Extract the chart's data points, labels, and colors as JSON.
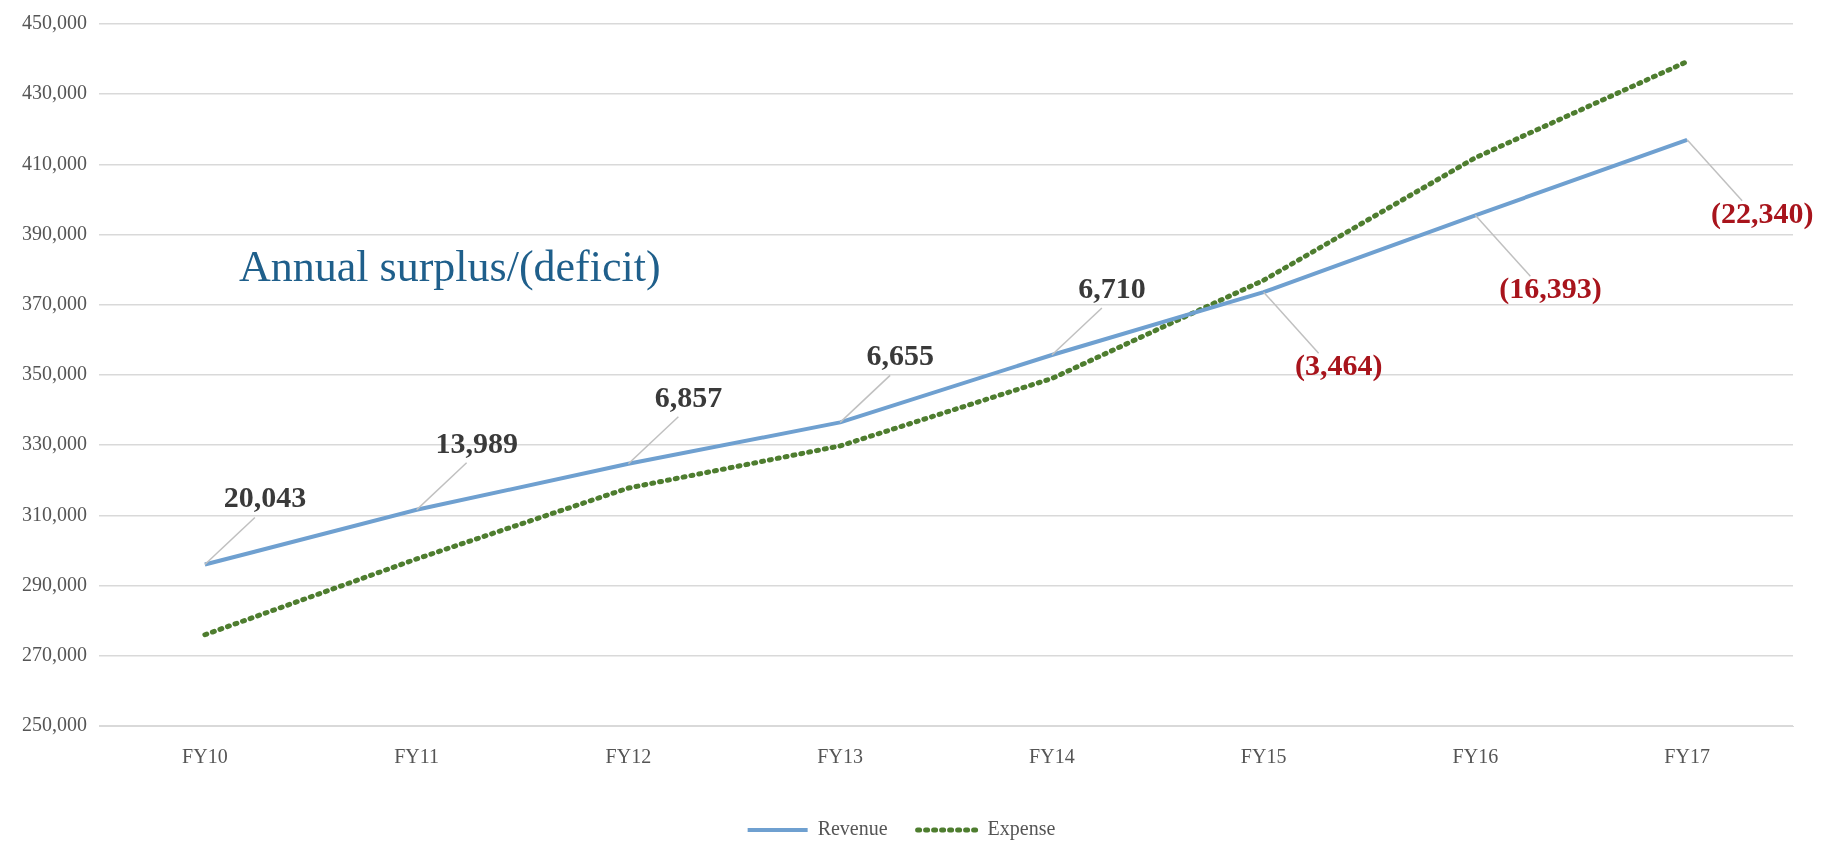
{
  "chart_data": {
    "type": "line",
    "title": "Annual surplus/(deficit)",
    "categories": [
      "FY10",
      "FY11",
      "FY12",
      "FY13",
      "FY14",
      "FY15",
      "FY16",
      "FY17"
    ],
    "series": [
      {
        "name": "Revenue",
        "color": "#6fa0d0",
        "line_style": "solid",
        "values": [
          296000,
          311600,
          324700,
          336500,
          355700,
          373600,
          395500,
          417000
        ]
      },
      {
        "name": "Expense",
        "color": "#4e7d2f",
        "line_style": "dotted",
        "values": [
          276000,
          297600,
          317800,
          329800,
          349000,
          377000,
          411900,
          439300
        ]
      }
    ],
    "ylim": [
      250000,
      450000
    ],
    "yticks": [
      {
        "value": 250000,
        "label": "250,000"
      },
      {
        "value": 270000,
        "label": "270,000"
      },
      {
        "value": 290000,
        "label": "290,000"
      },
      {
        "value": 310000,
        "label": "310,000"
      },
      {
        "value": 330000,
        "label": "330,000"
      },
      {
        "value": 350000,
        "label": "350,000"
      },
      {
        "value": 370000,
        "label": "370,000"
      },
      {
        "value": 390000,
        "label": "390,000"
      },
      {
        "value": 410000,
        "label": "410,000"
      },
      {
        "value": 430000,
        "label": "430,000"
      },
      {
        "value": 450000,
        "label": "450,000"
      }
    ],
    "grid": "y",
    "legend": "bottom",
    "marker": "none",
    "annotations": [
      {
        "text": "20,043",
        "x": "FY10",
        "y": 296000
      },
      {
        "text": "13,989",
        "x": "FY11",
        "y": 311600
      },
      {
        "text": "6,857",
        "x": "FY12",
        "y": 324700
      },
      {
        "text": "6,655",
        "x": "FY13",
        "y": 336500
      },
      {
        "text": "6,710",
        "x": "FY14",
        "y": 355700
      },
      {
        "text": "(3,464)",
        "x": "FY15",
        "y": 373600
      },
      {
        "text": "(16,393)",
        "x": "FY16",
        "y": 395500
      },
      {
        "text": "(22,340)",
        "x": "FY17",
        "y": 417000
      }
    ]
  }
}
